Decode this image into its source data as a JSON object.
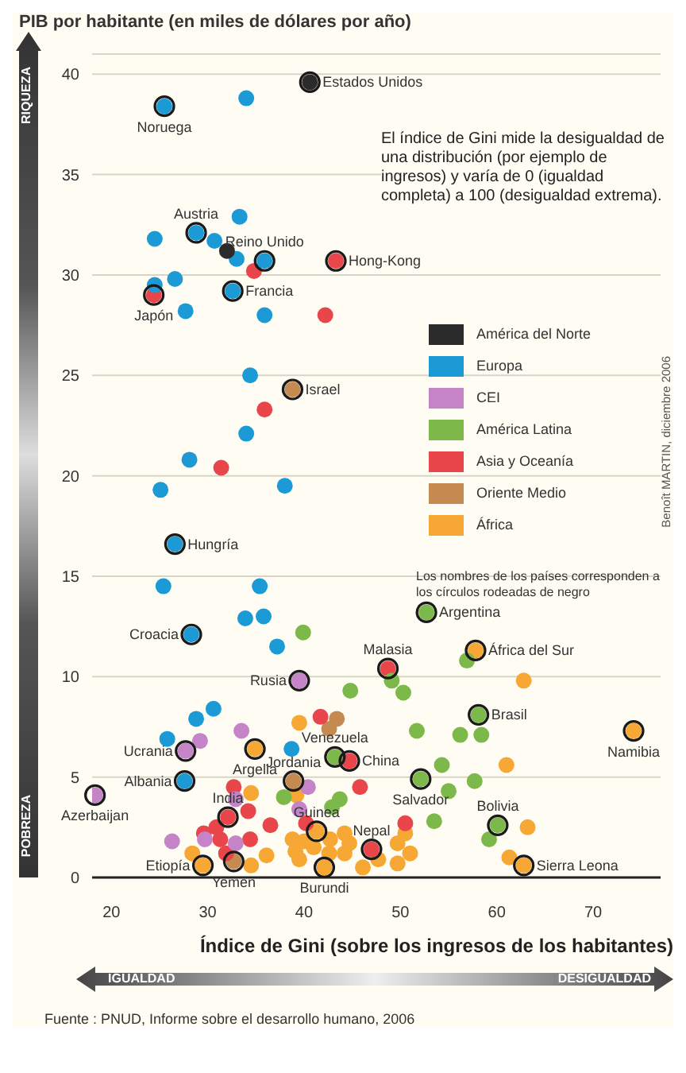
{
  "chart_data": {
    "type": "scatter",
    "ylabel": "PIB por habitante (en miles de dólares por año)",
    "xlabel": "Índice de Gini (sobre los ingresos de los habitantes)",
    "xlim": [
      18,
      77
    ],
    "xticks": [
      20,
      30,
      40,
      50,
      60,
      70
    ],
    "ylim": [
      0,
      41
    ],
    "yticks": [
      0,
      5,
      10,
      15,
      20,
      25,
      30,
      35,
      40
    ],
    "grid": "y",
    "legend": "right",
    "marker": "circle",
    "series": [
      {
        "name": "América del Norte",
        "color": "#2b2b2b",
        "x": [
          40.6,
          32.0
        ],
        "values": [
          39.6,
          31.2
        ]
      },
      {
        "name": "Europa",
        "color": "#1b9ad6",
        "x": [
          25.5,
          34.0,
          28.8,
          33.3,
          24.5,
          30.7,
          33.0,
          35.9,
          26.6,
          24.5,
          32.6,
          27.7,
          35.9,
          34.4,
          34.0,
          28.1,
          25.1,
          38.0,
          26.6,
          25.4,
          35.4,
          33.9,
          35.8,
          28.3,
          37.2,
          30.6,
          28.8,
          25.8,
          38.7,
          27.6
        ],
        "values": [
          38.4,
          38.8,
          32.1,
          32.9,
          31.8,
          31.7,
          30.8,
          30.7,
          29.8,
          29.5,
          29.2,
          28.2,
          28.0,
          25.0,
          22.1,
          20.8,
          19.3,
          19.5,
          16.6,
          14.5,
          14.5,
          12.9,
          13.0,
          12.1,
          11.5,
          8.4,
          7.9,
          6.9,
          6.4,
          4.8
        ]
      },
      {
        "name": "CEI",
        "color": "#c584c8",
        "x": [
          39.5,
          29.2,
          33.5,
          27.7,
          18.3,
          32.9,
          40.4,
          39.5,
          29.7,
          26.3,
          32.9
        ],
        "values": [
          9.8,
          6.8,
          7.3,
          6.3,
          4.1,
          3.9,
          4.5,
          3.4,
          1.9,
          1.8,
          1.7
        ]
      },
      {
        "name": "América Latina",
        "color": "#7cb84a",
        "x": [
          39.9,
          44.8,
          43.2,
          37.9,
          43.7,
          42.9,
          52.7,
          56.9,
          49.1,
          50.3,
          58.1,
          51.7,
          56.2,
          58.4,
          54.3,
          52.1,
          57.7,
          55.0,
          53.5,
          60.1,
          59.2
        ],
        "values": [
          12.2,
          9.3,
          6.0,
          4.0,
          3.9,
          3.5,
          13.2,
          10.8,
          9.8,
          9.2,
          8.1,
          7.3,
          7.1,
          7.1,
          5.6,
          4.9,
          4.8,
          4.3,
          2.8,
          2.6,
          1.9
        ]
      },
      {
        "name": "Asia y Oceanía",
        "color": "#e8464b",
        "x": [
          24.4,
          43.3,
          34.8,
          42.2,
          35.9,
          31.4,
          41.7,
          44.7,
          45.8,
          32.1,
          32.7,
          34.2,
          40.2,
          36.5,
          30.9,
          29.6,
          31.3,
          34.4,
          31.9,
          48.7,
          50.5,
          47.0
        ],
        "values": [
          29.0,
          30.7,
          30.2,
          28.0,
          23.3,
          20.4,
          8.0,
          5.8,
          4.5,
          3.0,
          4.5,
          3.3,
          2.7,
          2.6,
          2.5,
          2.2,
          1.9,
          1.9,
          1.2,
          10.4,
          2.7,
          1.4
        ]
      },
      {
        "name": "Oriente Medio",
        "color": "#c48a50",
        "x": [
          38.8,
          43.4,
          42.6,
          38.9,
          32.7
        ],
        "values": [
          24.3,
          7.9,
          7.4,
          4.8,
          0.8
        ]
      },
      {
        "name": "África",
        "color": "#f7a733",
        "x": [
          39.5,
          34.9,
          29.5,
          42.1,
          41.3,
          34.5,
          39.2,
          28.4,
          34.5,
          36.1,
          38.8,
          40.0,
          41.0,
          39.1,
          42.7,
          44.2,
          42.6,
          44.2,
          39.5,
          46.1,
          57.8,
          62.8,
          74.2,
          61.0,
          63.2,
          50.5,
          49.7,
          51.0,
          49.7,
          47.7,
          61.3,
          62.8,
          44.7
        ],
        "values": [
          7.7,
          6.4,
          0.6,
          0.5,
          2.3,
          4.2,
          4.1,
          1.2,
          0.6,
          1.1,
          1.9,
          1.8,
          1.5,
          1.3,
          1.9,
          2.2,
          1.2,
          1.2,
          0.9,
          0.5,
          11.3,
          9.8,
          7.3,
          5.6,
          2.5,
          2.2,
          1.7,
          1.2,
          0.7,
          0.9,
          1.0,
          0.6,
          1.7
        ]
      }
    ],
    "annotations": [
      "El índice de Gini mide la desigualdad de una distribución (por ejemplo de ingresos) y varía de 0 (igualdad completa) a 100 (desigualdad extrema).",
      "Los nombres de los países corresponden a los círculos rodeadas de negro",
      "RIQUEZA",
      "POBREZA",
      "IGUALDAD",
      "DESIGUALDAD",
      "Benoît MARTIN, diciembre 2006",
      "Fuente : PNUD, Informe sobre el desarrollo humano, 2006",
      {
        "text": "Estados Unidos",
        "x": 40.6,
        "y": 39.6
      },
      {
        "text": "Noruega",
        "x": 25.5,
        "y": 38.4
      },
      {
        "text": "Austria",
        "x": 28.8,
        "y": 32.1
      },
      {
        "text": "Reino Unido",
        "x": 35.9,
        "y": 30.7
      },
      {
        "text": "Hong-Kong",
        "x": 43.3,
        "y": 30.7
      },
      {
        "text": "Japón",
        "x": 24.4,
        "y": 29.0
      },
      {
        "text": "Francia",
        "x": 32.6,
        "y": 29.2
      },
      {
        "text": "Israel",
        "x": 38.8,
        "y": 24.3
      },
      {
        "text": "Hungría",
        "x": 26.6,
        "y": 16.6
      },
      {
        "text": "Croacia",
        "x": 28.3,
        "y": 12.1
      },
      {
        "text": "Rusia",
        "x": 39.5,
        "y": 9.8
      },
      {
        "text": "Argentina",
        "x": 52.7,
        "y": 13.2
      },
      {
        "text": "Malasia",
        "x": 48.7,
        "y": 10.4
      },
      {
        "text": "África del Sur",
        "x": 57.8,
        "y": 11.3
      },
      {
        "text": "Brasil",
        "x": 58.1,
        "y": 8.1
      },
      {
        "text": "Namibia",
        "x": 74.2,
        "y": 7.3
      },
      {
        "text": "Ucrania",
        "x": 27.7,
        "y": 6.3
      },
      {
        "text": "Argelia",
        "x": 34.9,
        "y": 6.4
      },
      {
        "text": "Jordania",
        "x": 38.9,
        "y": 4.8
      },
      {
        "text": "Venezuela",
        "x": 43.2,
        "y": 6.0
      },
      {
        "text": "China",
        "x": 44.7,
        "y": 5.8
      },
      {
        "text": "Albania",
        "x": 27.6,
        "y": 4.8
      },
      {
        "text": "Azerbaijan",
        "x": 18.3,
        "y": 4.1
      },
      {
        "text": "India",
        "x": 32.1,
        "y": 3.0
      },
      {
        "text": "Salvador",
        "x": 52.1,
        "y": 4.9
      },
      {
        "text": "Bolivia",
        "x": 60.1,
        "y": 2.6
      },
      {
        "text": "Guinea",
        "x": 41.3,
        "y": 2.3
      },
      {
        "text": "Nepal",
        "x": 47.0,
        "y": 1.4
      },
      {
        "text": "Etiopía",
        "x": 29.5,
        "y": 0.6
      },
      {
        "text": "Yemen",
        "x": 32.7,
        "y": 0.8
      },
      {
        "text": "Burundi",
        "x": 42.1,
        "y": 0.5
      },
      {
        "text": "Sierra Leona",
        "x": 62.8,
        "y": 0.6
      }
    ]
  }
}
